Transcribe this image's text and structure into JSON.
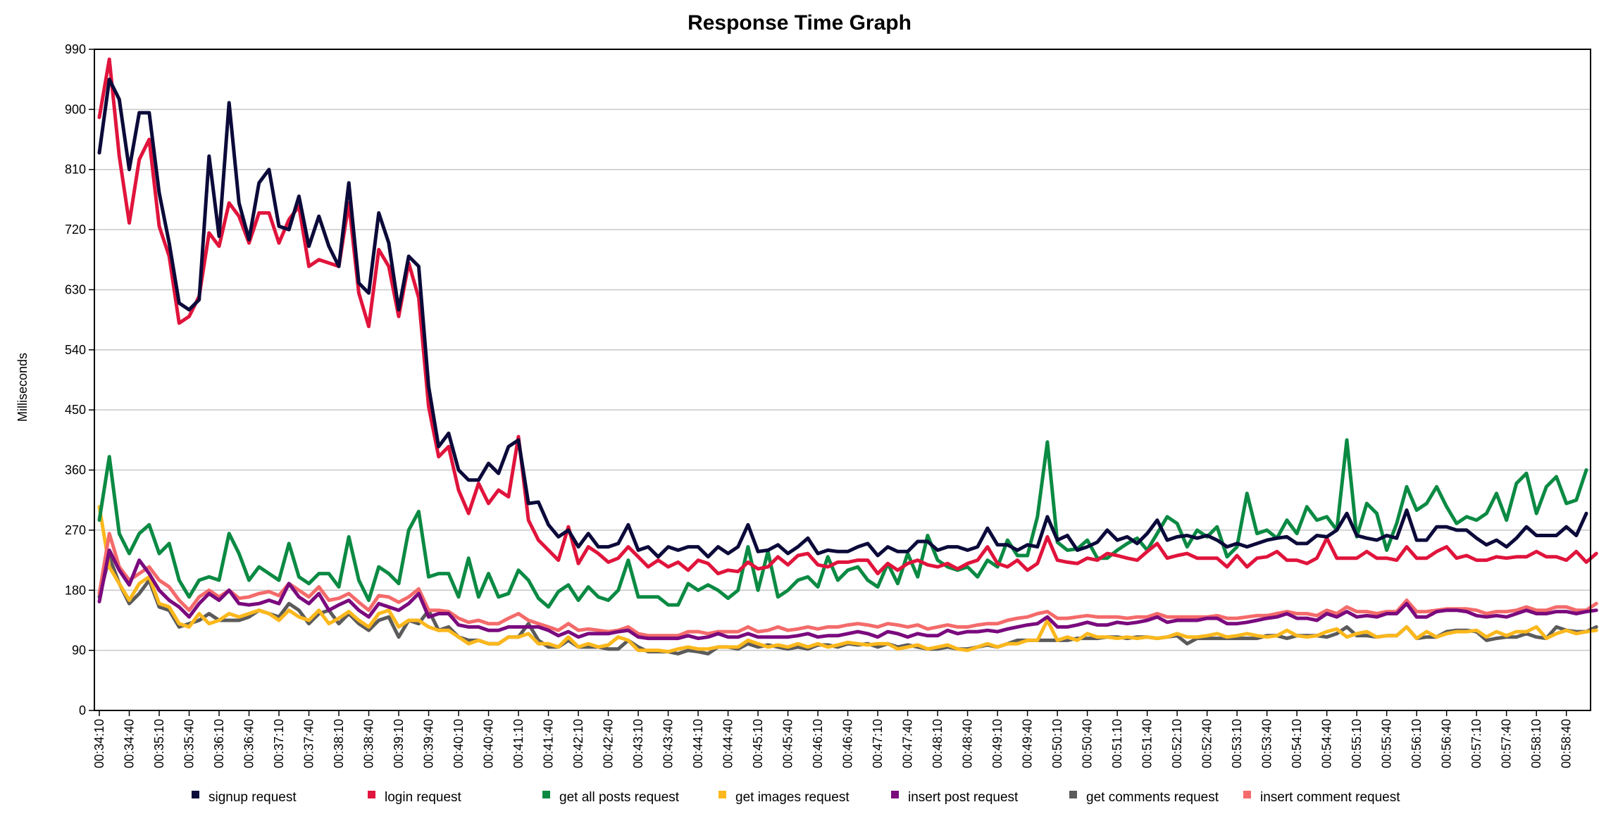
{
  "chart_data": {
    "type": "line",
    "title": "Response Time Graph",
    "xlabel": "",
    "ylabel": "Milliseconds",
    "ylim": [
      0,
      990
    ],
    "yticks": [
      0,
      90,
      180,
      270,
      360,
      450,
      540,
      630,
      720,
      810,
      900,
      990
    ],
    "x_range": [
      "00:34:10",
      "00:58:50"
    ],
    "x_step_seconds": 10,
    "xtick_labels": [
      "00:34:10",
      "00:34:40",
      "00:35:10",
      "00:35:40",
      "00:36:10",
      "00:36:40",
      "00:37:10",
      "00:37:40",
      "00:38:10",
      "00:38:40",
      "00:39:10",
      "00:39:40",
      "00:40:10",
      "00:40:40",
      "00:41:10",
      "00:41:40",
      "00:42:10",
      "00:42:40",
      "00:43:10",
      "00:43:40",
      "00:44:10",
      "00:44:40",
      "00:45:10",
      "00:45:40",
      "00:46:10",
      "00:46:40",
      "00:47:10",
      "00:47:40",
      "00:48:10",
      "00:48:40",
      "00:49:10",
      "00:49:40",
      "00:50:10",
      "00:50:40",
      "00:51:10",
      "00:51:40",
      "00:52:10",
      "00:52:40",
      "00:53:10",
      "00:53:40",
      "00:54:10",
      "00:54:40",
      "00:55:10",
      "00:55:40",
      "00:56:10",
      "00:56:40",
      "00:57:10",
      "00:57:40",
      "00:58:10",
      "00:58:40"
    ],
    "grid": true,
    "legend_position": "bottom",
    "series": [
      {
        "name": "signup request",
        "color": "#0b0a3a",
        "values": [
          835,
          945,
          915,
          810,
          895,
          895,
          775,
          700,
          610,
          600,
          615,
          830,
          710,
          910,
          760,
          705,
          790,
          810,
          725,
          720,
          770,
          695,
          740,
          695,
          665,
          790,
          640,
          625,
          745,
          700,
          600,
          680,
          665,
          485,
          395,
          415,
          360,
          345,
          345,
          370,
          355,
          395,
          405,
          310,
          312,
          278,
          260,
          270,
          245,
          265,
          245,
          245,
          250,
          278,
          240,
          245,
          230,
          245,
          240,
          245,
          245,
          230,
          245,
          235,
          245,
          278,
          238,
          240,
          248,
          235,
          245,
          258,
          235,
          240,
          238,
          238,
          245,
          250,
          232,
          245,
          238,
          238,
          253,
          253,
          240,
          245,
          245,
          240,
          245,
          273,
          248,
          248,
          240,
          248,
          245,
          290,
          255,
          262,
          240,
          245,
          252,
          270,
          255,
          260,
          250,
          265,
          285,
          255,
          260,
          262,
          258,
          262,
          255,
          245,
          250,
          245,
          250,
          255,
          258,
          260,
          250,
          250,
          262,
          260,
          270,
          295,
          262,
          258,
          255,
          262,
          258,
          300,
          255,
          255,
          275,
          275,
          270,
          270,
          258,
          248,
          255,
          245,
          258,
          275,
          262,
          262,
          262,
          275,
          262,
          295
        ]
      },
      {
        "name": "login request",
        "color": "#e0143c",
        "values": [
          888,
          975,
          830,
          730,
          825,
          855,
          725,
          680,
          580,
          590,
          620,
          715,
          695,
          760,
          740,
          700,
          745,
          745,
          700,
          735,
          755,
          665,
          675,
          670,
          665,
          760,
          625,
          575,
          690,
          665,
          590,
          670,
          618,
          455,
          380,
          395,
          330,
          295,
          340,
          310,
          330,
          320,
          410,
          285,
          255,
          240,
          225,
          275,
          220,
          245,
          235,
          222,
          228,
          245,
          230,
          215,
          225,
          215,
          222,
          210,
          225,
          220,
          205,
          210,
          208,
          222,
          212,
          215,
          230,
          218,
          232,
          235,
          218,
          215,
          222,
          222,
          225,
          225,
          205,
          220,
          210,
          220,
          225,
          218,
          215,
          220,
          212,
          220,
          225,
          245,
          220,
          215,
          225,
          210,
          220,
          260,
          225,
          222,
          220,
          228,
          225,
          235,
          232,
          228,
          225,
          238,
          250,
          228,
          232,
          235,
          228,
          228,
          228,
          215,
          232,
          215,
          228,
          230,
          238,
          225,
          225,
          220,
          228,
          258,
          228,
          228,
          228,
          238,
          228,
          228,
          225,
          245,
          228,
          228,
          238,
          245,
          228,
          232,
          225,
          225,
          230,
          228,
          230,
          230,
          238,
          230,
          230,
          225,
          238,
          222,
          235
        ]
      },
      {
        "name": "get all posts request",
        "color": "#0b8a43",
        "values": [
          285,
          380,
          265,
          235,
          265,
          278,
          235,
          250,
          195,
          170,
          195,
          200,
          195,
          265,
          235,
          195,
          215,
          205,
          195,
          250,
          200,
          190,
          205,
          205,
          185,
          260,
          195,
          165,
          215,
          205,
          190,
          270,
          298,
          200,
          205,
          205,
          170,
          228,
          170,
          205,
          170,
          175,
          210,
          195,
          168,
          155,
          178,
          188,
          165,
          185,
          170,
          165,
          180,
          225,
          170,
          170,
          170,
          158,
          158,
          190,
          180,
          188,
          180,
          168,
          180,
          245,
          180,
          238,
          170,
          180,
          195,
          200,
          185,
          230,
          195,
          210,
          215,
          195,
          185,
          220,
          190,
          235,
          200,
          262,
          225,
          215,
          210,
          215,
          200,
          225,
          215,
          255,
          232,
          232,
          290,
          402,
          252,
          240,
          242,
          255,
          228,
          228,
          240,
          250,
          258,
          240,
          265,
          290,
          280,
          245,
          270,
          260,
          275,
          230,
          245,
          325,
          265,
          270,
          258,
          285,
          265,
          305,
          285,
          290,
          270,
          405,
          260,
          310,
          295,
          240,
          280,
          335,
          300,
          310,
          335,
          305,
          280,
          290,
          285,
          295,
          325,
          285,
          340,
          355,
          295,
          335,
          350,
          310,
          315,
          360
        ]
      },
      {
        "name": "get images request",
        "color": "#fbb81d",
        "values": [
          305,
          215,
          190,
          165,
          190,
          200,
          160,
          155,
          130,
          125,
          145,
          130,
          135,
          145,
          140,
          145,
          150,
          145,
          135,
          150,
          140,
          135,
          150,
          130,
          138,
          148,
          135,
          125,
          145,
          150,
          125,
          135,
          135,
          125,
          120,
          120,
          110,
          100,
          105,
          100,
          100,
          110,
          110,
          115,
          100,
          100,
          95,
          110,
          95,
          100,
          95,
          98,
          110,
          105,
          90,
          90,
          90,
          88,
          92,
          95,
          92,
          92,
          95,
          95,
          95,
          105,
          100,
          95,
          98,
          95,
          100,
          95,
          100,
          95,
          98,
          102,
          100,
          98,
          100,
          100,
          92,
          95,
          98,
          92,
          95,
          98,
          92,
          90,
          95,
          100,
          95,
          100,
          100,
          105,
          105,
          135,
          105,
          110,
          105,
          115,
          110,
          110,
          108,
          110,
          108,
          110,
          108,
          110,
          115,
          110,
          110,
          112,
          115,
          110,
          112,
          115,
          112,
          110,
          112,
          120,
          112,
          110,
          112,
          118,
          122,
          110,
          115,
          118,
          110,
          112,
          112,
          125,
          108,
          118,
          110,
          115,
          118,
          118,
          120,
          110,
          118,
          112,
          118,
          118,
          125,
          108,
          115,
          120,
          115,
          118,
          120
        ]
      },
      {
        "name": "insert post request",
        "color": "#7a0a7e",
        "values": [
          163,
          240,
          210,
          188,
          225,
          205,
          180,
          165,
          155,
          140,
          160,
          175,
          165,
          180,
          160,
          158,
          160,
          165,
          160,
          190,
          170,
          160,
          175,
          150,
          158,
          165,
          150,
          140,
          160,
          155,
          150,
          160,
          175,
          140,
          145,
          145,
          128,
          125,
          125,
          120,
          120,
          125,
          125,
          125,
          125,
          120,
          112,
          118,
          110,
          115,
          115,
          115,
          118,
          120,
          110,
          108,
          108,
          108,
          108,
          112,
          108,
          110,
          115,
          110,
          110,
          115,
          110,
          110,
          110,
          110,
          112,
          115,
          110,
          112,
          112,
          115,
          118,
          115,
          110,
          118,
          115,
          110,
          115,
          112,
          112,
          120,
          115,
          118,
          118,
          120,
          118,
          122,
          125,
          128,
          130,
          140,
          125,
          125,
          128,
          132,
          128,
          128,
          132,
          130,
          132,
          135,
          140,
          132,
          135,
          135,
          135,
          138,
          138,
          130,
          130,
          132,
          135,
          138,
          140,
          145,
          138,
          138,
          135,
          145,
          140,
          148,
          140,
          142,
          140,
          145,
          145,
          160,
          140,
          140,
          148,
          150,
          150,
          148,
          142,
          140,
          142,
          140,
          145,
          150,
          145,
          145,
          148,
          148,
          145,
          148,
          150
        ]
      },
      {
        "name": "get comments request",
        "color": "#5b5b5b",
        "values": [
          170,
          230,
          190,
          160,
          175,
          195,
          155,
          150,
          125,
          130,
          135,
          145,
          135,
          135,
          135,
          140,
          150,
          145,
          140,
          160,
          150,
          130,
          145,
          150,
          130,
          145,
          130,
          120,
          135,
          140,
          110,
          135,
          130,
          150,
          120,
          125,
          110,
          105,
          105,
          100,
          100,
          110,
          110,
          130,
          105,
          95,
          95,
          105,
          95,
          95,
          95,
          92,
          92,
          105,
          95,
          88,
          88,
          88,
          85,
          90,
          88,
          85,
          95,
          95,
          92,
          100,
          95,
          98,
          95,
          92,
          95,
          92,
          98,
          98,
          95,
          100,
          98,
          100,
          95,
          100,
          95,
          98,
          95,
          92,
          92,
          95,
          92,
          92,
          95,
          98,
          95,
          100,
          105,
          105,
          105,
          105,
          105,
          105,
          108,
          108,
          108,
          110,
          110,
          108,
          110,
          110,
          108,
          110,
          112,
          100,
          108,
          108,
          108,
          108,
          108,
          108,
          108,
          112,
          112,
          108,
          112,
          112,
          112,
          110,
          115,
          125,
          112,
          112,
          110,
          112,
          112,
          125,
          108,
          110,
          110,
          118,
          120,
          120,
          118,
          105,
          108,
          110,
          110,
          115,
          110,
          108,
          125,
          120,
          118,
          118,
          125
        ]
      },
      {
        "name": "insert comment request",
        "color": "#f46b6b",
        "values": [
          175,
          265,
          215,
          195,
          205,
          215,
          195,
          185,
          165,
          150,
          170,
          180,
          170,
          180,
          168,
          170,
          175,
          178,
          172,
          190,
          180,
          170,
          185,
          165,
          168,
          175,
          162,
          150,
          172,
          170,
          162,
          170,
          182,
          150,
          150,
          148,
          138,
          132,
          135,
          130,
          130,
          138,
          145,
          135,
          130,
          125,
          120,
          130,
          120,
          122,
          120,
          118,
          120,
          125,
          115,
          112,
          112,
          112,
          112,
          118,
          118,
          115,
          118,
          118,
          118,
          125,
          118,
          120,
          125,
          120,
          122,
          125,
          122,
          125,
          125,
          128,
          130,
          128,
          125,
          130,
          128,
          125,
          128,
          122,
          125,
          128,
          125,
          125,
          128,
          130,
          130,
          135,
          138,
          140,
          145,
          148,
          138,
          138,
          140,
          142,
          140,
          140,
          140,
          138,
          140,
          140,
          145,
          140,
          140,
          140,
          140,
          140,
          142,
          138,
          138,
          140,
          142,
          142,
          145,
          148,
          145,
          145,
          142,
          150,
          145,
          155,
          148,
          148,
          145,
          148,
          148,
          165,
          148,
          148,
          150,
          152,
          152,
          152,
          150,
          145,
          148,
          148,
          150,
          155,
          150,
          150,
          155,
          155,
          150,
          150,
          160
        ]
      }
    ]
  }
}
